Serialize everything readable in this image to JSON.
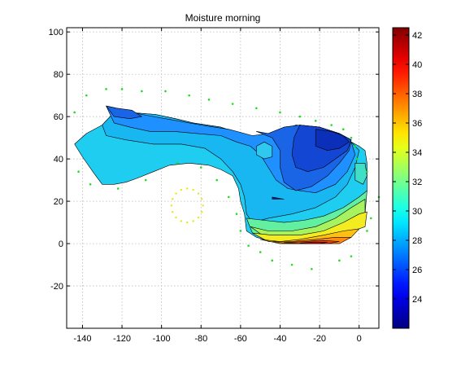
{
  "chart_data": {
    "type": "heatmap",
    "subtype": "filled-contour",
    "title": "Moisture   morning",
    "xlabel": "",
    "ylabel": "",
    "xlim": [
      -148,
      10
    ],
    "ylim": [
      -40,
      102
    ],
    "x_ticks": [
      -140,
      -120,
      -100,
      -80,
      -60,
      -40,
      -20,
      0
    ],
    "y_ticks": [
      -20,
      0,
      20,
      40,
      60,
      80,
      100
    ],
    "grid": true,
    "colormap": "jet",
    "colorbar": {
      "position": "right",
      "range": [
        22,
        42.5
      ],
      "ticks": [
        24,
        26,
        28,
        30,
        32,
        34,
        36,
        38,
        40,
        42
      ]
    },
    "contour_regions": [
      {
        "level": 29.5,
        "color": "#1ecdf0",
        "points": [
          [
            -144,
            47
          ],
          [
            -138,
            52
          ],
          [
            -130,
            56
          ],
          [
            -123,
            63
          ],
          [
            -117,
            62
          ],
          [
            -103,
            61
          ],
          [
            -93,
            59
          ],
          [
            -84,
            57
          ],
          [
            -70,
            55
          ],
          [
            -60,
            52
          ],
          [
            -50,
            49
          ],
          [
            -42,
            52
          ],
          [
            -32,
            56
          ],
          [
            -20,
            55
          ],
          [
            -10,
            52
          ],
          [
            -4,
            48
          ],
          [
            0,
            46
          ],
          [
            3,
            44
          ],
          [
            4,
            38
          ],
          [
            4,
            32
          ],
          [
            4,
            25
          ],
          [
            2,
            18
          ],
          [
            -4,
            12
          ],
          [
            -10,
            8
          ],
          [
            -20,
            4
          ],
          [
            -30,
            2
          ],
          [
            -40,
            0
          ],
          [
            -52,
            3
          ],
          [
            -57,
            6
          ],
          [
            -58,
            14
          ],
          [
            -60,
            20
          ],
          [
            -61,
            26
          ],
          [
            -64,
            32
          ],
          [
            -70,
            35
          ],
          [
            -76,
            37
          ],
          [
            -86,
            38
          ],
          [
            -96,
            37
          ],
          [
            -104,
            34
          ],
          [
            -112,
            31
          ],
          [
            -118,
            29
          ],
          [
            -124,
            28
          ],
          [
            -130,
            28
          ],
          [
            -134,
            33
          ],
          [
            -140,
            41
          ]
        ]
      },
      {
        "level": 28.5,
        "color": "#19b7f1",
        "points": [
          [
            -130,
            56
          ],
          [
            -123,
            63
          ],
          [
            -117,
            62
          ],
          [
            -103,
            61
          ],
          [
            -93,
            59
          ],
          [
            -84,
            57
          ],
          [
            -70,
            55
          ],
          [
            -60,
            52
          ],
          [
            -50,
            49
          ],
          [
            -42,
            52
          ],
          [
            -32,
            56
          ],
          [
            -20,
            55
          ],
          [
            -10,
            52
          ],
          [
            -4,
            48
          ],
          [
            0,
            44
          ],
          [
            -2,
            36
          ],
          [
            -6,
            28
          ],
          [
            -12,
            22
          ],
          [
            -22,
            17
          ],
          [
            -34,
            14
          ],
          [
            -46,
            12
          ],
          [
            -54,
            10
          ],
          [
            -57,
            14
          ],
          [
            -58,
            22
          ],
          [
            -60,
            28
          ],
          [
            -64,
            34
          ],
          [
            -70,
            40
          ],
          [
            -78,
            45
          ],
          [
            -90,
            47
          ],
          [
            -104,
            47
          ],
          [
            -118,
            49
          ],
          [
            -128,
            51
          ]
        ]
      },
      {
        "level": 27.5,
        "color": "#1e90ff",
        "points": [
          [
            -128,
            65
          ],
          [
            -123,
            64
          ],
          [
            -110,
            61
          ],
          [
            -92,
            58
          ],
          [
            -80,
            56
          ],
          [
            -66,
            54
          ],
          [
            -54,
            51
          ],
          [
            -46,
            52
          ],
          [
            -38,
            55
          ],
          [
            -30,
            56
          ],
          [
            -20,
            55
          ],
          [
            -10,
            52
          ],
          [
            -4,
            48
          ],
          [
            -2,
            42
          ],
          [
            -6,
            34
          ],
          [
            -12,
            28
          ],
          [
            -22,
            24
          ],
          [
            -30,
            25
          ],
          [
            -36,
            26
          ],
          [
            -42,
            30
          ],
          [
            -46,
            36
          ],
          [
            -50,
            42
          ],
          [
            -55,
            46
          ],
          [
            -62,
            48
          ],
          [
            -70,
            51
          ],
          [
            -82,
            52
          ],
          [
            -94,
            53
          ],
          [
            -106,
            53
          ],
          [
            -116,
            55
          ],
          [
            -124,
            57
          ]
        ]
      },
      {
        "level": 26.5,
        "color": "#1a64e6",
        "points": [
          [
            -128,
            65
          ],
          [
            -123,
            64
          ],
          [
            -115,
            63
          ],
          [
            -110,
            60
          ],
          [
            -116,
            59
          ],
          [
            -124,
            60
          ]
        ]
      },
      {
        "level": 26.5,
        "color": "#1a64e6",
        "points": [
          [
            -52,
            53
          ],
          [
            -46,
            52
          ],
          [
            -38,
            55
          ],
          [
            -30,
            56
          ],
          [
            -20,
            55
          ],
          [
            -10,
            52
          ],
          [
            -4,
            49
          ],
          [
            -5,
            44
          ],
          [
            -10,
            38
          ],
          [
            -16,
            32
          ],
          [
            -24,
            27
          ],
          [
            -32,
            25
          ],
          [
            -38,
            29
          ],
          [
            -40,
            36
          ],
          [
            -40,
            44
          ],
          [
            -44,
            50
          ]
        ]
      },
      {
        "level": 25.5,
        "color": "#1346d2",
        "points": [
          [
            -30,
            56
          ],
          [
            -20,
            55
          ],
          [
            -10,
            52
          ],
          [
            -4,
            49
          ],
          [
            -6,
            44
          ],
          [
            -12,
            40
          ],
          [
            -18,
            36
          ],
          [
            -26,
            34
          ],
          [
            -32,
            36
          ],
          [
            -34,
            42
          ],
          [
            -33,
            50
          ]
        ]
      },
      {
        "level": 24.5,
        "color": "#0b2fb8",
        "points": [
          [
            -22,
            54
          ],
          [
            -14,
            53
          ],
          [
            -8,
            51
          ],
          [
            -5,
            48
          ],
          [
            -10,
            45
          ],
          [
            -16,
            44
          ],
          [
            -22,
            46
          ]
        ]
      },
      {
        "level": 23.5,
        "color": "#061aa4",
        "points": [
          [
            -44,
            22
          ],
          [
            -38,
            21
          ],
          [
            -44,
            21
          ]
        ]
      },
      {
        "level": 30.5,
        "color": "#40e0c8",
        "points": [
          [
            -2,
            38
          ],
          [
            3,
            38
          ],
          [
            4,
            32
          ],
          [
            2,
            28
          ],
          [
            -2,
            30
          ]
        ]
      },
      {
        "level": 28.5,
        "color": "#2fc8ee",
        "points": [
          [
            -52,
            42
          ],
          [
            -48,
            40
          ],
          [
            -44,
            41
          ],
          [
            -44,
            46
          ],
          [
            -48,
            48
          ],
          [
            -52,
            46
          ]
        ]
      },
      {
        "level": 31,
        "color": "#62f0a0",
        "points": [
          [
            -57,
            12
          ],
          [
            -48,
            11
          ],
          [
            -38,
            10
          ],
          [
            -28,
            11
          ],
          [
            -18,
            13
          ],
          [
            -8,
            17
          ],
          [
            0,
            22
          ],
          [
            4,
            25
          ],
          [
            3,
            14
          ],
          [
            -4,
            10
          ],
          [
            -14,
            6
          ],
          [
            -30,
            3
          ],
          [
            -46,
            3
          ],
          [
            -54,
            5
          ]
        ]
      },
      {
        "level": 32,
        "color": "#a8f260",
        "points": [
          [
            -55,
            8
          ],
          [
            -46,
            6
          ],
          [
            -34,
            6
          ],
          [
            -22,
            8
          ],
          [
            -12,
            12
          ],
          [
            -4,
            17
          ],
          [
            3,
            21
          ],
          [
            3,
            12
          ],
          [
            -6,
            8
          ],
          [
            -18,
            5
          ],
          [
            -32,
            3
          ],
          [
            -46,
            2
          ]
        ]
      },
      {
        "level": 33.5,
        "color": "#f2ec20",
        "points": [
          [
            -54,
            5
          ],
          [
            -44,
            4
          ],
          [
            -30,
            4
          ],
          [
            -18,
            6
          ],
          [
            -8,
            10
          ],
          [
            0,
            14
          ],
          [
            4,
            15
          ],
          [
            3,
            8
          ],
          [
            -6,
            5
          ],
          [
            -18,
            2
          ],
          [
            -32,
            1
          ],
          [
            -46,
            1
          ]
        ]
      },
      {
        "level": 35,
        "color": "#ffc010",
        "points": [
          [
            -50,
            2
          ],
          [
            -40,
            1
          ],
          [
            -30,
            2
          ],
          [
            -18,
            4
          ],
          [
            -8,
            6
          ],
          [
            0,
            7
          ],
          [
            -4,
            3
          ],
          [
            -14,
            1
          ],
          [
            -26,
            0
          ],
          [
            -40,
            0
          ]
        ]
      },
      {
        "level": 37,
        "color": "#ff8a10",
        "points": [
          [
            -44,
            1
          ],
          [
            -34,
            1
          ],
          [
            -22,
            2
          ],
          [
            -12,
            3
          ],
          [
            -4,
            3
          ],
          [
            -10,
            0
          ],
          [
            -22,
            0
          ],
          [
            -36,
            0
          ]
        ]
      },
      {
        "level": 39,
        "color": "#f24010",
        "points": [
          [
            -38,
            0.5
          ],
          [
            -28,
            1
          ],
          [
            -18,
            1.5
          ],
          [
            -10,
            1
          ],
          [
            -16,
            0
          ],
          [
            -30,
            0
          ]
        ]
      },
      {
        "level": 41,
        "color": "#c01010",
        "points": [
          [
            -30,
            0.3
          ],
          [
            -22,
            0.8
          ],
          [
            -16,
            0.6
          ],
          [
            -20,
            0
          ],
          [
            -28,
            0
          ]
        ]
      }
    ],
    "sensor_points": [
      [
        -144,
        62
      ],
      [
        -138,
        70
      ],
      [
        -128,
        73
      ],
      [
        -120,
        73
      ],
      [
        -110,
        72
      ],
      [
        -98,
        72
      ],
      [
        -86,
        70
      ],
      [
        -76,
        68
      ],
      [
        -64,
        66
      ],
      [
        -52,
        64
      ],
      [
        -40,
        62
      ],
      [
        -30,
        60
      ],
      [
        -22,
        58
      ],
      [
        -14,
        56
      ],
      [
        -8,
        54
      ],
      [
        -4,
        50
      ],
      [
        -2,
        46
      ],
      [
        -1,
        40
      ],
      [
        4,
        34
      ],
      [
        10,
        22
      ],
      [
        6,
        12
      ],
      [
        4,
        6
      ],
      [
        -4,
        -6
      ],
      [
        -10,
        -8
      ],
      [
        -24,
        -12
      ],
      [
        -34,
        -10
      ],
      [
        -44,
        -8
      ],
      [
        -50,
        -4
      ],
      [
        -56,
        -1
      ],
      [
        -60,
        6
      ],
      [
        -62,
        14
      ],
      [
        -66,
        22
      ],
      [
        -72,
        30
      ],
      [
        -80,
        36
      ],
      [
        -92,
        38
      ],
      [
        -108,
        30
      ],
      [
        -122,
        26
      ],
      [
        -136,
        28
      ],
      [
        -142,
        34
      ]
    ],
    "sensor_circle": {
      "center": [
        -87,
        18
      ],
      "radius": 8
    },
    "sensor_colors": {
      "boundary": "#22dd22",
      "circle": "#e6e61a"
    }
  }
}
